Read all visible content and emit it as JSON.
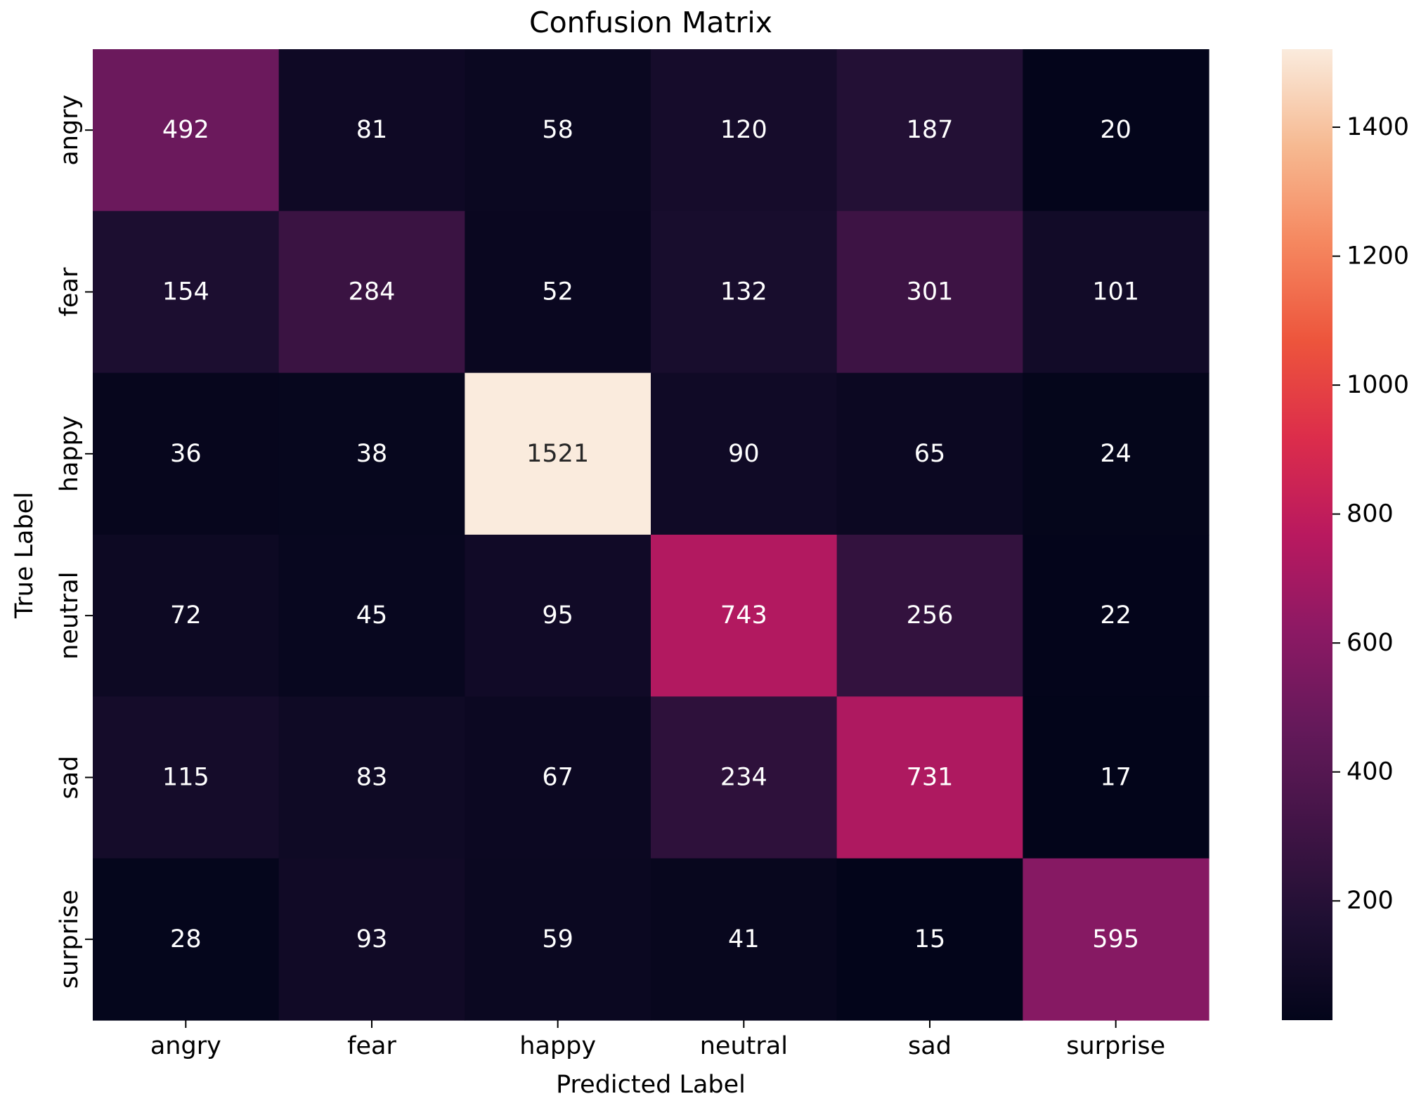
{
  "chart_data": {
    "type": "heatmap",
    "title": "Confusion Matrix",
    "xlabel": "Predicted Label",
    "ylabel": "True Label",
    "x_categories": [
      "angry",
      "fear",
      "happy",
      "neutral",
      "sad",
      "surprise"
    ],
    "y_categories": [
      "angry",
      "fear",
      "happy",
      "neutral",
      "sad",
      "surprise"
    ],
    "values": [
      [
        492,
        81,
        58,
        120,
        187,
        20
      ],
      [
        154,
        284,
        52,
        132,
        301,
        101
      ],
      [
        36,
        38,
        1521,
        90,
        65,
        24
      ],
      [
        72,
        45,
        95,
        743,
        256,
        22
      ],
      [
        115,
        83,
        67,
        234,
        731,
        17
      ],
      [
        28,
        93,
        59,
        41,
        15,
        595
      ]
    ],
    "colormap": "rocket",
    "colorbar": {
      "range": [
        15,
        1521
      ],
      "ticks": [
        200,
        400,
        600,
        800,
        1000,
        1200,
        1400
      ]
    },
    "text_colors": {
      "dark_cell": "#ffffff",
      "light_cell": "#262626"
    },
    "grid": false,
    "legend": "colorbar-right"
  }
}
